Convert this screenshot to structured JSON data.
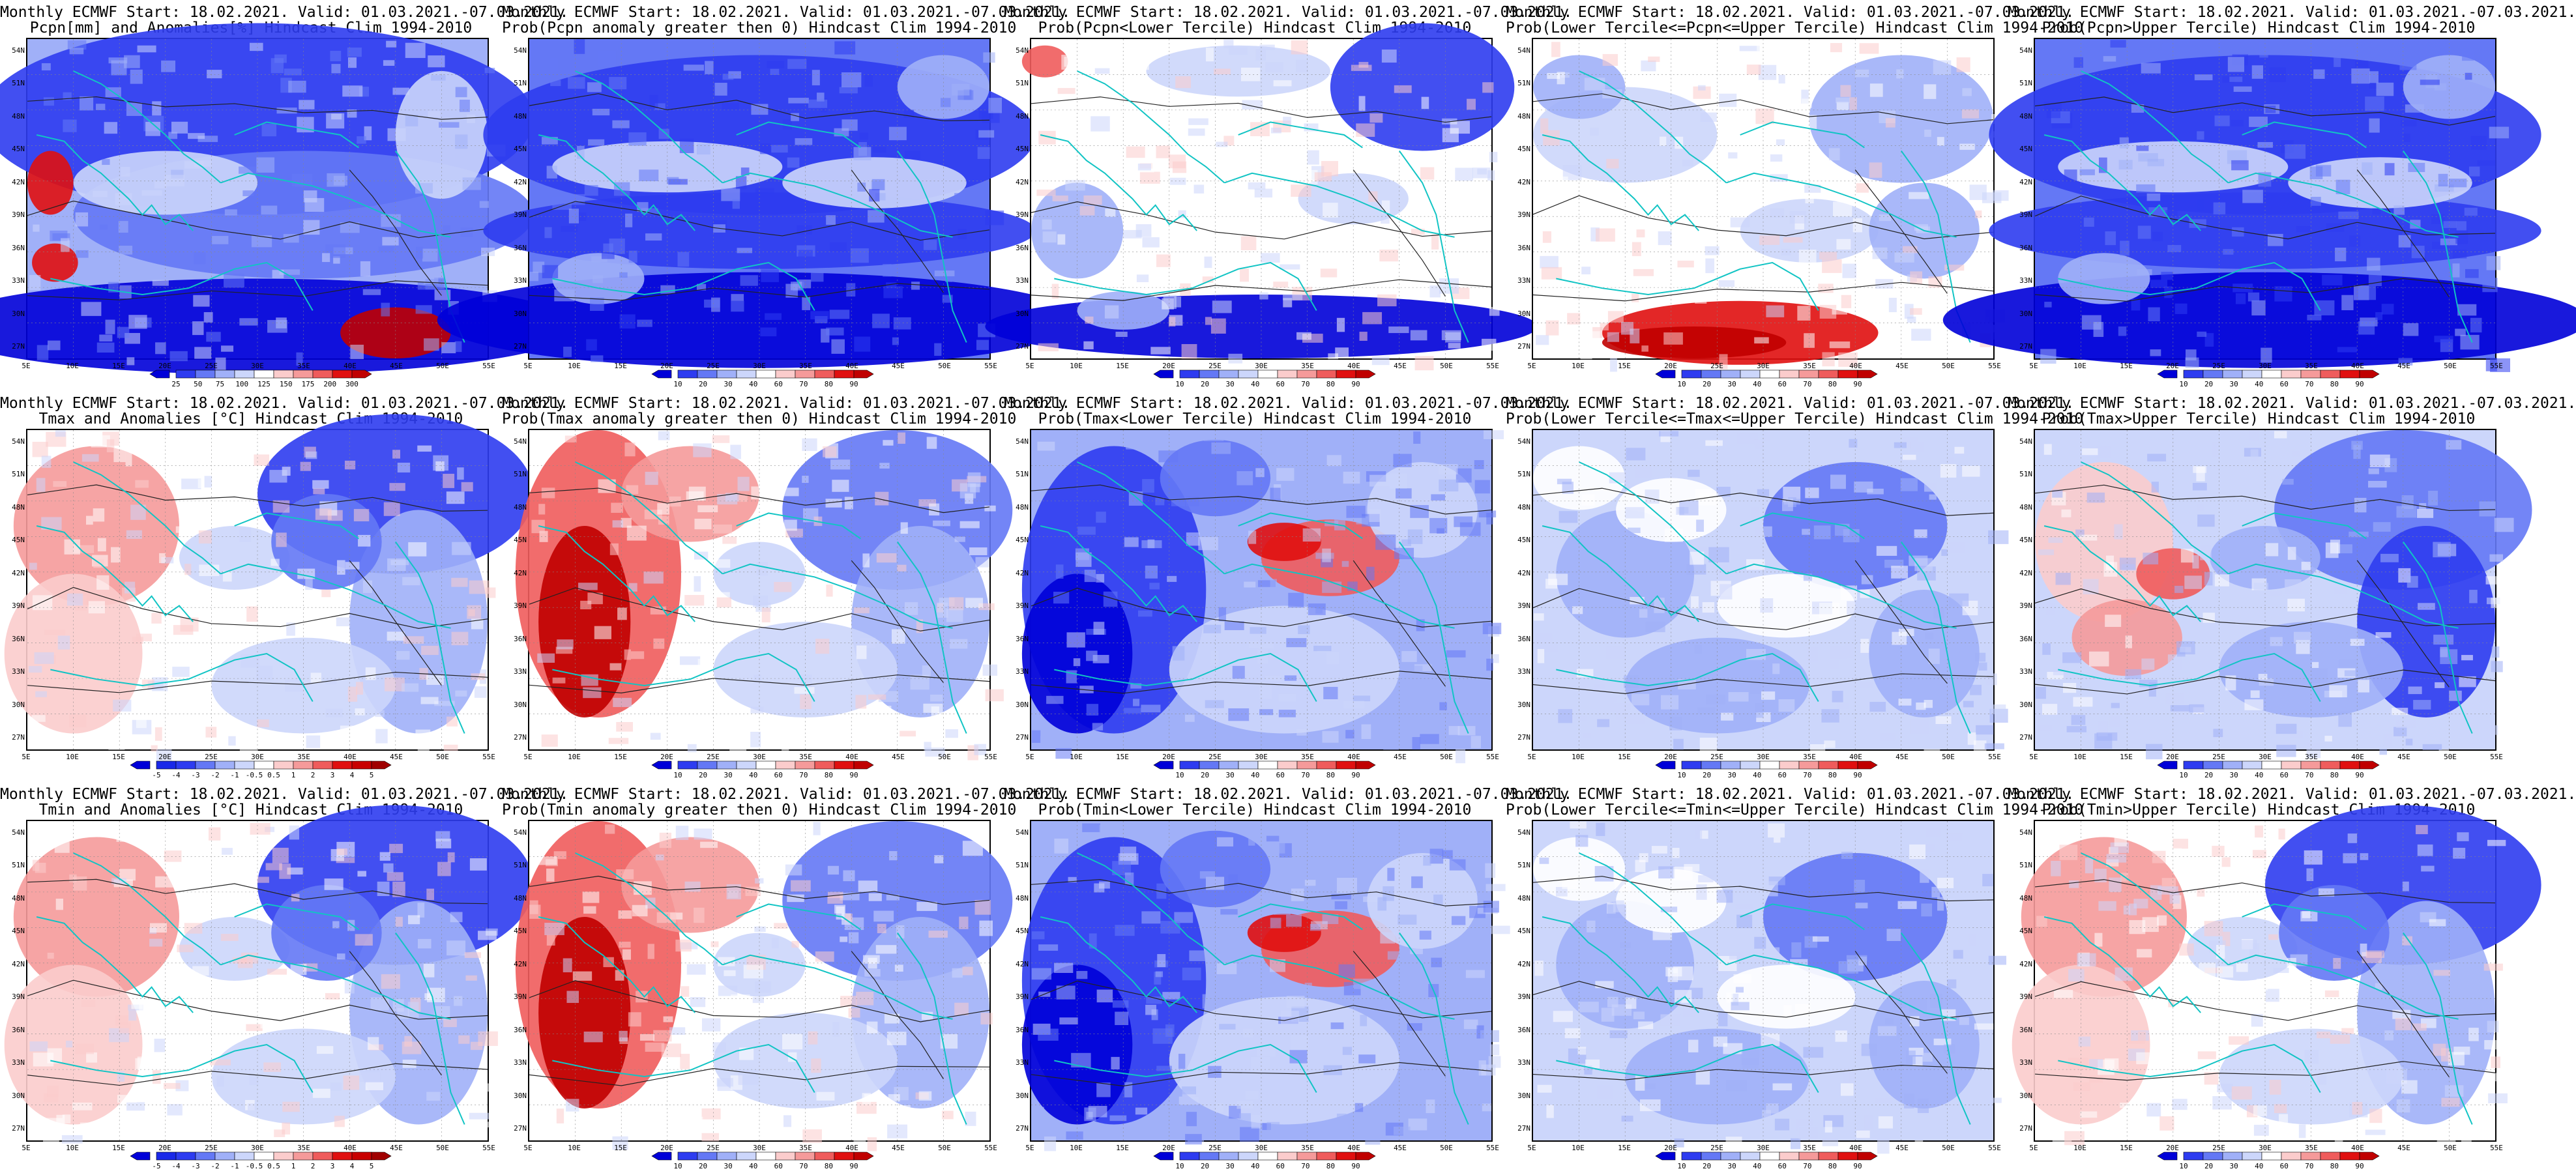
{
  "panels": [
    {
      "id": "pcpn-anom",
      "line1": "Monthly ECMWF Start: 18.02.2021. Valid: 01.03.2021.-07.03.2021.",
      "line2": "Pcpn[mm] and Anomalies[%] Hindcast Clim 1994-2010",
      "scale": "anom_pcpn",
      "pattern": "blue_north_red_se"
    },
    {
      "id": "pcpn-prob-gt0",
      "line1": "Monthly ECMWF Start: 18.02.2021. Valid: 01.03.2021.-07.03.2021.",
      "line2": "Prob(Pcpn anomaly greater then 0) Hindcast Clim 1994-2010",
      "scale": "prob",
      "pattern": "mostly_blue"
    },
    {
      "id": "pcpn-prob-lower",
      "line1": "Monthly ECMWF Start: 18.02.2021. Valid: 01.03.2021.-07.03.2021.",
      "line2": "Prob(Pcpn<Lower Tercile) Hindcast Clim 1994-2010",
      "scale": "prob",
      "pattern": "white_center_blue_edges"
    },
    {
      "id": "pcpn-prob-middle",
      "line1": "Monthly ECMWF Start: 18.02.2021. Valid: 01.03.2021.-07.03.2021.",
      "line2": "Prob(Lower Tercile<=Pcpn<=Upper Tercile) Hindcast Clim 1994-2010",
      "scale": "prob",
      "pattern": "white_red_south"
    },
    {
      "id": "pcpn-prob-upper",
      "line1": "Monthly ECMWF Start: 18.02.2021. Valid: 01.03.2021.-07.03.2021.",
      "line2": "Prob(Pcpn>Upper Tercile) Hindcast Clim 1994-2010",
      "scale": "prob",
      "pattern": "mostly_blue"
    },
    {
      "id": "tmax-anom",
      "line1": "Monthly ECMWF Start: 18.02.2021. Valid: 01.03.2021.-07.03.2021.",
      "line2": "Tmax and Anomalies [°C] Hindcast Clim 1994-2010",
      "scale": "anom_temp",
      "pattern": "red_west_blue_east"
    },
    {
      "id": "tmax-prob-gt0",
      "line1": "Monthly ECMWF Start: 18.02.2021. Valid: 01.03.2021.-07.03.2021.",
      "line2": "Prob(Tmax anomaly greater then 0) Hindcast Clim 1994-2010",
      "scale": "prob",
      "pattern": "deep_red_west_blue_east"
    },
    {
      "id": "tmax-prob-lower",
      "line1": "Monthly ECMWF Start: 18.02.2021. Valid: 01.03.2021.-07.03.2021.",
      "line2": "Prob(Tmax<Lower Tercile) Hindcast Clim 1994-2010",
      "scale": "prob",
      "pattern": "blue_west_red_ne"
    },
    {
      "id": "tmax-prob-middle",
      "line1": "Monthly ECMWF Start: 18.02.2021. Valid: 01.03.2021.-07.03.2021.",
      "line2": "Prob(Lower Tercile<=Tmax<=Upper Tercile) Hindcast Clim 1994-2010",
      "scale": "prob",
      "pattern": "light_blue_mix"
    },
    {
      "id": "tmax-prob-upper",
      "line1": "Monthly ECMWF Start: 18.02.2021. Valid: 01.03.2021.-07.03.2021.",
      "line2": "Prob(Tmax>Upper Tercile) Hindcast Clim 1994-2010",
      "scale": "prob",
      "pattern": "red_west_blue_east_light"
    },
    {
      "id": "tmin-anom",
      "line1": "Monthly ECMWF Start: 18.02.2021. Valid: 01.03.2021.-07.03.2021.",
      "line2": "Tmin and Anomalies [°C] Hindcast Clim 1994-2010",
      "scale": "anom_temp",
      "pattern": "red_west_blue_east"
    },
    {
      "id": "tmin-prob-gt0",
      "line1": "Monthly ECMWF Start: 18.02.2021. Valid: 01.03.2021.-07.03.2021.",
      "line2": "Prob(Tmin anomaly greater then 0) Hindcast Clim 1994-2010",
      "scale": "prob",
      "pattern": "deep_red_west_blue_east"
    },
    {
      "id": "tmin-prob-lower",
      "line1": "Monthly ECMWF Start: 18.02.2021. Valid: 01.03.2021.-07.03.2021.",
      "line2": "Prob(Tmin<Lower Tercile) Hindcast Clim 1994-2010",
      "scale": "prob",
      "pattern": "blue_west_red_ne"
    },
    {
      "id": "tmin-prob-middle",
      "line1": "Monthly ECMWF Start: 18.02.2021. Valid: 01.03.2021.-07.03.2021.",
      "line2": "Prob(Lower Tercile<=Tmin<=Upper Tercile) Hindcast Clim 1994-2010",
      "scale": "prob",
      "pattern": "light_blue_mix"
    },
    {
      "id": "tmin-prob-upper",
      "line1": "Monthly ECMWF Start: 18.02.2021. Valid: 01.03.2021.-07.03.2021.",
      "line2": "Prob(Tmin>Upper Tercile) Hindcast Clim 1994-2010",
      "scale": "prob",
      "pattern": "red_west_blue_east"
    }
  ],
  "axes": {
    "lat_labels": [
      "54N",
      "51N",
      "48N",
      "45N",
      "42N",
      "39N",
      "36N",
      "33N",
      "30N",
      "27N"
    ],
    "lon_labels": [
      "5E",
      "10E",
      "15E",
      "20E",
      "25E",
      "30E",
      "35E",
      "40E",
      "45E",
      "50E",
      "55E"
    ]
  },
  "colorbars": {
    "prob": {
      "ticks": [
        "10",
        "20",
        "30",
        "40",
        "60",
        "70",
        "80",
        "90"
      ],
      "colors": [
        "#0000d8",
        "#2e3cf0",
        "#6478f5",
        "#a0b0f8",
        "#ccd6fb",
        "#ffffff",
        "#fbcccc",
        "#f59a9a",
        "#ef5c5c",
        "#e01010",
        "#c00000"
      ]
    },
    "anom_pcpn": {
      "ticks": [
        "25",
        "50",
        "75",
        "100",
        "125",
        "150",
        "175",
        "200",
        "300"
      ],
      "colors": [
        "#0000d8",
        "#2e3cf0",
        "#6478f5",
        "#a0b0f8",
        "#ccd6fb",
        "#ffffff",
        "#fbcccc",
        "#f59a9a",
        "#ef5c5c",
        "#e01010",
        "#c00000"
      ]
    },
    "anom_temp": {
      "ticks": [
        "-5",
        "-4",
        "-3",
        "-2",
        "-1",
        "-0.5",
        "0.5",
        "1",
        "2",
        "3",
        "4",
        "5"
      ],
      "colors": [
        "#0000d8",
        "#1a28e8",
        "#2e3cf0",
        "#6478f5",
        "#a0b0f8",
        "#ccd6fb",
        "#ffffff",
        "#fbcccc",
        "#f59a9a",
        "#ef5c5c",
        "#e01010",
        "#c80000",
        "#a00000"
      ]
    }
  }
}
